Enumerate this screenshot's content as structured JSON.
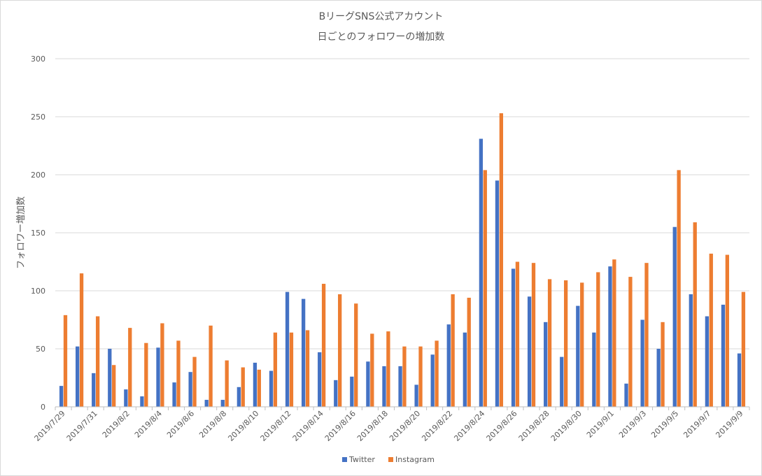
{
  "chart_data": {
    "type": "bar",
    "title": "BリーグSNS公式アカウント",
    "subtitle": "日ごとのフォロワーの増加数",
    "ylabel": "フォロワー増加数",
    "xlabel": "",
    "ylim": [
      0,
      300
    ],
    "yticks": [
      0,
      50,
      100,
      150,
      200,
      250,
      300
    ],
    "grid": true,
    "legend_position": "bottom",
    "categories": [
      "2019/7/29",
      "2019/7/30",
      "2019/7/31",
      "2019/8/1",
      "2019/8/2",
      "2019/8/3",
      "2019/8/4",
      "2019/8/5",
      "2019/8/6",
      "2019/8/7",
      "2019/8/8",
      "2019/8/9",
      "2019/8/10",
      "2019/8/11",
      "2019/8/12",
      "2019/8/13",
      "2019/8/14",
      "2019/8/15",
      "2019/8/16",
      "2019/8/17",
      "2019/8/18",
      "2019/8/19",
      "2019/8/20",
      "2019/8/21",
      "2019/8/22",
      "2019/8/23",
      "2019/8/24",
      "2019/8/25",
      "2019/8/26",
      "2019/8/27",
      "2019/8/28",
      "2019/8/29",
      "2019/8/30",
      "2019/8/31",
      "2019/9/1",
      "2019/9/2",
      "2019/9/3",
      "2019/9/4",
      "2019/9/5",
      "2019/9/6",
      "2019/9/7",
      "2019/9/8",
      "2019/9/9"
    ],
    "tick_labels": [
      "2019/7/29",
      "",
      "2019/7/31",
      "",
      "2019/8/2",
      "",
      "2019/8/4",
      "",
      "2019/8/6",
      "",
      "2019/8/8",
      "",
      "2019/8/10",
      "",
      "2019/8/12",
      "",
      "2019/8/14",
      "",
      "2019/8/16",
      "",
      "2019/8/18",
      "",
      "2019/8/20",
      "",
      "2019/8/22",
      "",
      "2019/8/24",
      "",
      "2019/8/26",
      "",
      "2019/8/28",
      "",
      "2019/8/30",
      "",
      "2019/9/1",
      "",
      "2019/9/3",
      "",
      "2019/9/5",
      "",
      "2019/9/7",
      "",
      "2019/9/9"
    ],
    "series": [
      {
        "name": "Twitter",
        "color": "#4472c4",
        "values": [
          18,
          52,
          29,
          50,
          15,
          9,
          51,
          21,
          30,
          6,
          6,
          17,
          38,
          31,
          99,
          93,
          47,
          23,
          26,
          39,
          35,
          35,
          19,
          45,
          71,
          64,
          231,
          195,
          119,
          95,
          73,
          43,
          87,
          64,
          121,
          20,
          75,
          50,
          155,
          97,
          78,
          88,
          46
        ]
      },
      {
        "name": "Instagram",
        "color": "#ed7d31",
        "values": [
          79,
          115,
          78,
          36,
          68,
          55,
          72,
          57,
          43,
          70,
          40,
          34,
          32,
          64,
          64,
          66,
          106,
          97,
          89,
          63,
          65,
          52,
          52,
          57,
          97,
          94,
          204,
          253,
          125,
          124,
          110,
          109,
          107,
          116,
          127,
          112,
          124,
          73,
          204,
          159,
          132,
          131,
          99
        ]
      }
    ]
  }
}
